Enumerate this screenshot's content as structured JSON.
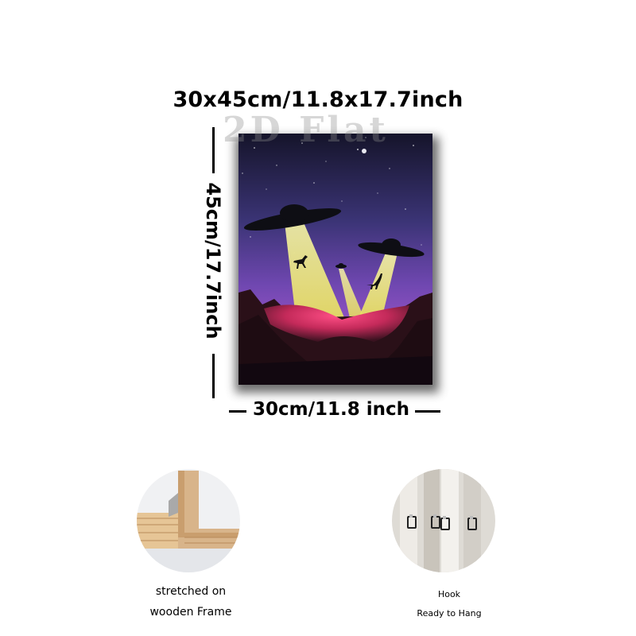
{
  "dimensions": {
    "title": "30x45cm/11.8x17.7inch",
    "height_label": "45cm/17.7inch",
    "width_label": "30cm/11.8 inch"
  },
  "watermark": "2D Flat",
  "painting": {
    "subject": "UFOs abducting dinosaurs",
    "colors": {
      "sky_top": "#1a1630",
      "sky_mid": "#4e3d8a",
      "sky_low": "#8a4fc0",
      "beam": "#f3f08a",
      "crater": "#e8326a"
    }
  },
  "features": [
    {
      "lines": [
        "stretched on",
        "wooden Frame"
      ],
      "icon": "wooden-frame-corner-photo"
    },
    {
      "lines": [
        "Hook",
        "Ready to Hang"
      ],
      "icon": "hanging-hook-photo"
    }
  ]
}
